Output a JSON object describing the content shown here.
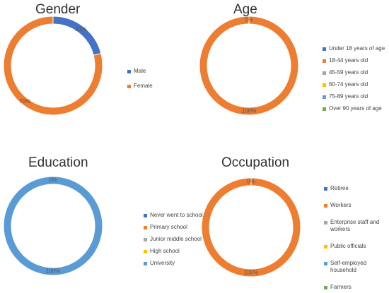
{
  "chart_data": [
    {
      "type": "donut",
      "title": "Gender",
      "categories": [
        "Male",
        "Female"
      ],
      "values": [
        21,
        79
      ],
      "value_labels": [
        "21%",
        "79%"
      ],
      "colors": [
        "#4472c4",
        "#ed7d31"
      ]
    },
    {
      "type": "donut",
      "title": "Age",
      "categories": [
        "Under 18 years of age",
        "18-44 years old",
        "45-59 years old",
        "60-74 years old",
        "75-89 years old",
        "Over 90 years of age"
      ],
      "values": [
        0,
        100,
        0,
        0,
        0,
        0
      ],
      "value_labels": [
        "0%",
        "100%",
        null,
        null,
        null,
        null
      ],
      "colors": [
        "#4472c4",
        "#ed7d31",
        "#a5a5a5",
        "#ffc000",
        "#5b9bd5",
        "#70ad47"
      ]
    },
    {
      "type": "donut",
      "title": "Education",
      "categories": [
        "Never went to school.",
        "Primary school",
        "Junior middle school",
        "High school",
        "University"
      ],
      "values": [
        0,
        0,
        0,
        0,
        100
      ],
      "value_labels": [
        "0%",
        null,
        null,
        null,
        "100%"
      ],
      "colors": [
        "#4472c4",
        "#ed7d31",
        "#a5a5a5",
        "#ffc000",
        "#5b9bd5"
      ]
    },
    {
      "type": "donut",
      "title": "Occupation",
      "categories": [
        "Retiree",
        "Workers",
        "Enterprise staff and workers",
        "Public officials",
        "Self-employed household",
        "Farmers"
      ],
      "values": [
        0,
        100,
        0,
        0,
        0,
        0
      ],
      "value_labels": [
        "0%",
        "100%",
        null,
        null,
        null,
        null
      ],
      "colors": [
        "#4472c4",
        "#ed7d31",
        "#a5a5a5",
        "#ffc000",
        "#5b9bd5",
        "#70ad47"
      ]
    }
  ]
}
